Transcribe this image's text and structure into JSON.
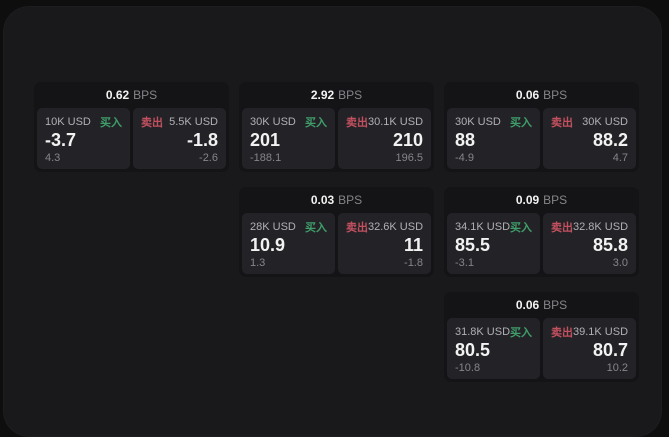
{
  "labels": {
    "bps": "BPS",
    "buy": "买入",
    "sell": "卖出"
  },
  "colors": {
    "background": "#0e0e0f",
    "window": "#19191b",
    "card": "#141416",
    "panel": "#232327",
    "buy_green": "#3f9e6a",
    "sell_red": "#c2505f",
    "text_primary": "#f2f2f2",
    "text_secondary": "#85858a",
    "text_label": "#b0b0b5"
  },
  "cards": [
    {
      "bps": "0.62",
      "buy": {
        "amount": "10K USD",
        "value": "-3.7",
        "delta": "4.3"
      },
      "sell": {
        "amount": "5.5K USD",
        "value": "-1.8",
        "delta": "-2.6"
      }
    },
    {
      "bps": "2.92",
      "buy": {
        "amount": "30K USD",
        "value": "201",
        "delta": "-188.1"
      },
      "sell": {
        "amount": "30.1K USD",
        "value": "210",
        "delta": "196.5"
      }
    },
    {
      "bps": "0.06",
      "buy": {
        "amount": "30K USD",
        "value": "88",
        "delta": "-4.9"
      },
      "sell": {
        "amount": "30K USD",
        "value": "88.2",
        "delta": "4.7"
      }
    },
    {
      "bps": "0.03",
      "buy": {
        "amount": "28K USD",
        "value": "10.9",
        "delta": "1.3"
      },
      "sell": {
        "amount": "32.6K USD",
        "value": "11",
        "delta": "-1.8"
      }
    },
    {
      "bps": "0.09",
      "buy": {
        "amount": "34.1K USD",
        "value": "85.5",
        "delta": "-3.1"
      },
      "sell": {
        "amount": "32.8K USD",
        "value": "85.8",
        "delta": "3.0"
      }
    },
    {
      "bps": "0.06",
      "buy": {
        "amount": "31.8K USD",
        "value": "80.5",
        "delta": "-10.8"
      },
      "sell": {
        "amount": "39.1K USD",
        "value": "80.7",
        "delta": "10.2"
      }
    }
  ]
}
